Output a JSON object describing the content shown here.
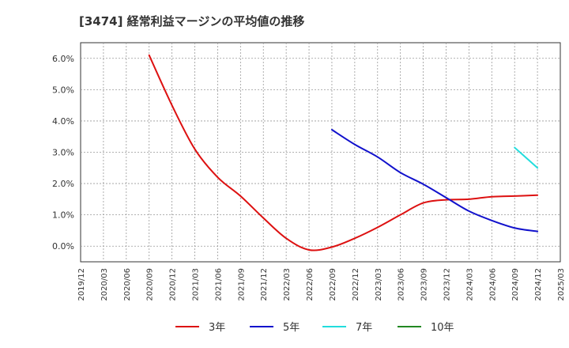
{
  "chart_data": {
    "type": "line",
    "title": "[3474]  経常利益マージンの平均値の推移",
    "xlabel": "",
    "ylabel": "",
    "ylim": [
      -0.5,
      6.5
    ],
    "yticks": [
      0.0,
      1.0,
      2.0,
      3.0,
      4.0,
      5.0,
      6.0
    ],
    "ytick_labels": [
      "0.0%",
      "1.0%",
      "2.0%",
      "3.0%",
      "4.0%",
      "5.0%",
      "6.0%"
    ],
    "x_categories": [
      "2019/12",
      "2020/03",
      "2020/06",
      "2020/09",
      "2020/12",
      "2021/03",
      "2021/06",
      "2021/09",
      "2021/12",
      "2022/03",
      "2022/06",
      "2022/09",
      "2022/12",
      "2023/03",
      "2023/06",
      "2023/09",
      "2023/12",
      "2024/03",
      "2024/06",
      "2024/09",
      "2024/12",
      "2025/03"
    ],
    "grid": true,
    "legend_position": "bottom",
    "series": [
      {
        "name": "3年",
        "color": "#dd1111",
        "points": [
          [
            "2020/09",
            6.1
          ],
          [
            "2020/12",
            4.5
          ],
          [
            "2021/03",
            3.1
          ],
          [
            "2021/06",
            2.2
          ],
          [
            "2021/09",
            1.6
          ],
          [
            "2021/12",
            0.9
          ],
          [
            "2022/03",
            0.25
          ],
          [
            "2022/06",
            -0.12
          ],
          [
            "2022/09",
            -0.03
          ],
          [
            "2022/12",
            0.25
          ],
          [
            "2023/03",
            0.6
          ],
          [
            "2023/06",
            1.0
          ],
          [
            "2023/09",
            1.38
          ],
          [
            "2023/12",
            1.48
          ],
          [
            "2024/03",
            1.5
          ],
          [
            "2024/06",
            1.58
          ],
          [
            "2024/09",
            1.6
          ],
          [
            "2024/12",
            1.63
          ]
        ]
      },
      {
        "name": "5年",
        "color": "#1111cc",
        "points": [
          [
            "2022/09",
            3.72
          ],
          [
            "2022/12",
            3.25
          ],
          [
            "2023/03",
            2.85
          ],
          [
            "2023/06",
            2.35
          ],
          [
            "2023/09",
            1.98
          ],
          [
            "2023/12",
            1.55
          ],
          [
            "2024/03",
            1.12
          ],
          [
            "2024/06",
            0.82
          ],
          [
            "2024/09",
            0.58
          ],
          [
            "2024/12",
            0.47
          ]
        ]
      },
      {
        "name": "7年",
        "color": "#22dddd",
        "points": [
          [
            "2024/09",
            3.15
          ],
          [
            "2024/12",
            2.5
          ]
        ]
      },
      {
        "name": "10年",
        "color": "#228822",
        "points": []
      }
    ]
  }
}
